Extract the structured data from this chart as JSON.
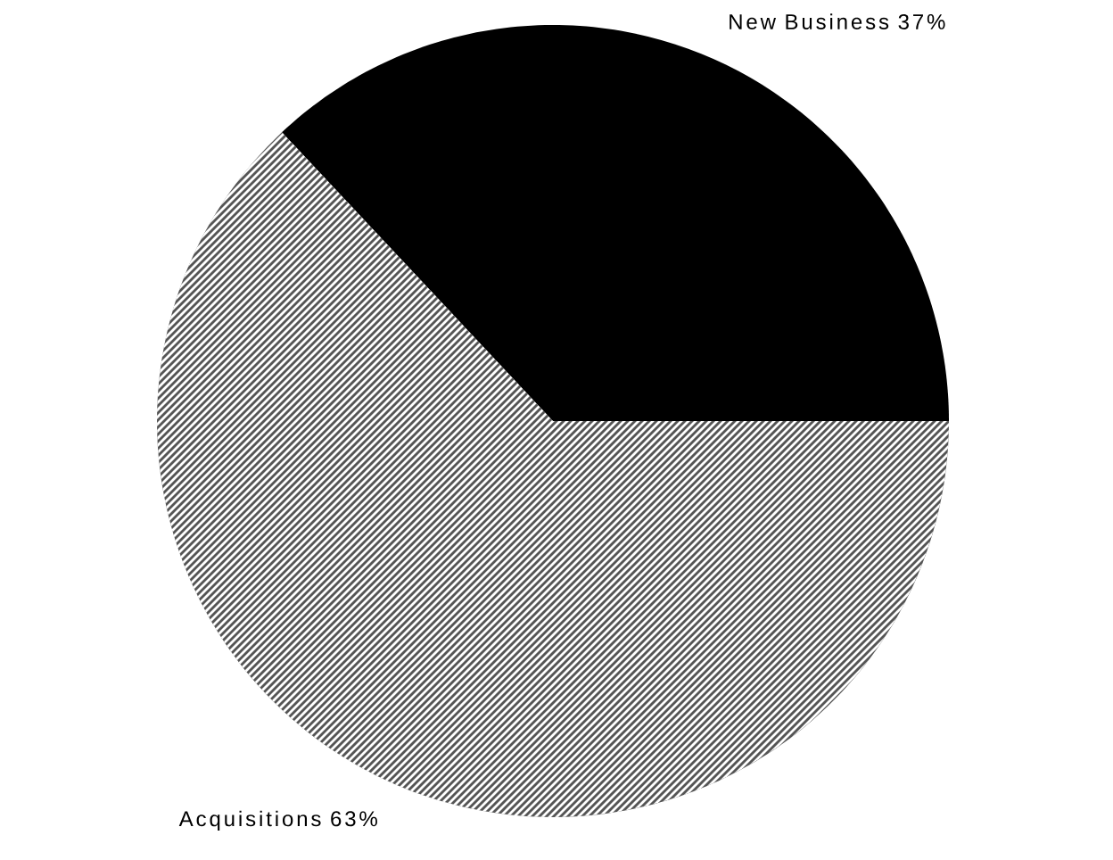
{
  "chart_data": {
    "type": "pie",
    "categories": [
      "New Business",
      "Acquisitions"
    ],
    "values": [
      37,
      63
    ],
    "value_labels": [
      "37%",
      "63%"
    ],
    "colors": [
      "#000000",
      "#555555"
    ]
  }
}
